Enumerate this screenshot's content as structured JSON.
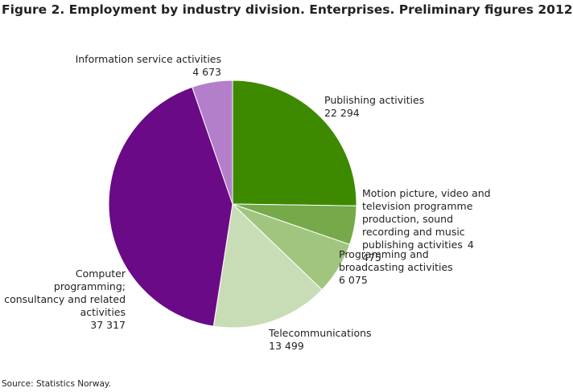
{
  "chart_data": {
    "type": "pie",
    "title": "Figure 2. Employment by industry division. Enterprises. Preliminary figures 2012",
    "source": "Source: Statistics Norway.",
    "categories": [
      "Publishing activities",
      "Motion picture, video and television programme production, sound recording and music publishing activities",
      "Programming and broadcasting activities",
      "Telecommunications",
      "Computer programming; consultancy and related activities",
      "Information service activities"
    ],
    "values": [
      22294,
      4475,
      6075,
      13499,
      37317,
      4673
    ],
    "value_labels": [
      "22 294",
      "4 475",
      "6 075",
      "13 499",
      "37 317",
      "4 673"
    ],
    "colors": [
      "#3d8a00",
      "#76a94a",
      "#a0c57f",
      "#c8ddb5",
      "#6a0a87",
      "#b37fca"
    ]
  }
}
